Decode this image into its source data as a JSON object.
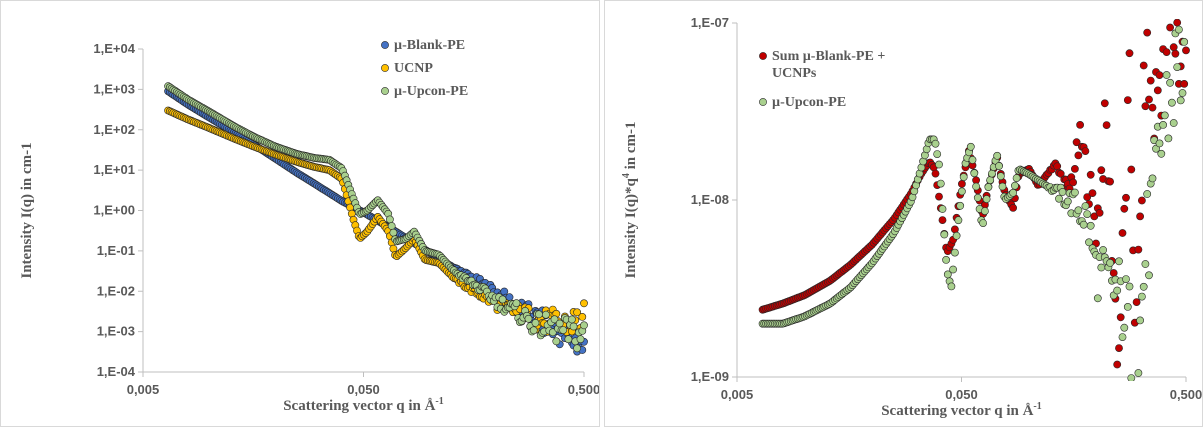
{
  "chart_data": [
    {
      "type": "scatter",
      "title": "",
      "xlabel": "Scattering vector q in Å",
      "xlabel_sup": "-1",
      "ylabel": "Intensity I(q) in cm-1",
      "ylabel_sup": "",
      "ylabel_tail": "",
      "x_scale": "log",
      "y_scale": "log",
      "xlim": [
        0.005,
        0.5
      ],
      "ylim": [
        0.0001,
        10000
      ],
      "x_ticks": [
        0.005,
        0.05,
        0.5
      ],
      "x_tick_labels": [
        "0,005",
        "0,050",
        "0,500"
      ],
      "y_ticks": [
        0.0001,
        0.001,
        0.01,
        0.1,
        1,
        10,
        100,
        1000,
        10000
      ],
      "y_tick_labels": [
        "1,E-04",
        "1,E-03",
        "1,E-02",
        "1,E-01",
        "1,E+00",
        "1,E+01",
        "1,E+02",
        "1,E+03",
        "1,E+04"
      ],
      "grid": false,
      "legend_position": "top-right",
      "series": [
        {
          "name": "µ-Blank-PE",
          "color": "#4472c4",
          "points": [
            [
              0.0065,
              900
            ],
            [
              0.008,
              420
            ],
            [
              0.01,
              200
            ],
            [
              0.013,
              85
            ],
            [
              0.016,
              42
            ],
            [
              0.02,
              19
            ],
            [
              0.025,
              8.5
            ],
            [
              0.03,
              4.6
            ],
            [
              0.035,
              2.7
            ],
            [
              0.04,
              1.7
            ],
            [
              0.05,
              0.9
            ],
            [
              0.06,
              0.5
            ],
            [
              0.07,
              0.3
            ],
            [
              0.08,
              0.19
            ],
            [
              0.1,
              0.09
            ],
            [
              0.12,
              0.048
            ],
            [
              0.15,
              0.024
            ],
            [
              0.18,
              0.013
            ],
            [
              0.2,
              0.009
            ],
            [
              0.25,
              0.004
            ],
            [
              0.3,
              0.0022
            ],
            [
              0.35,
              0.0013
            ],
            [
              0.4,
              0.0009
            ],
            [
              0.45,
              0.0006
            ],
            [
              0.5,
              0.0004
            ]
          ]
        },
        {
          "name": "UCNP",
          "color": "#ffc000",
          "points": [
            [
              0.0065,
              300
            ],
            [
              0.008,
              180
            ],
            [
              0.01,
              110
            ],
            [
              0.013,
              60
            ],
            [
              0.016,
              38
            ],
            [
              0.02,
              24
            ],
            [
              0.025,
              16
            ],
            [
              0.03,
              12
            ],
            [
              0.035,
              10
            ],
            [
              0.04,
              6
            ],
            [
              0.045,
              0.6
            ],
            [
              0.048,
              0.2
            ],
            [
              0.052,
              0.3
            ],
            [
              0.058,
              0.7
            ],
            [
              0.065,
              0.3
            ],
            [
              0.07,
              0.07
            ],
            [
              0.078,
              0.12
            ],
            [
              0.085,
              0.2
            ],
            [
              0.095,
              0.06
            ],
            [
              0.11,
              0.05
            ],
            [
              0.13,
              0.02
            ],
            [
              0.15,
              0.012
            ],
            [
              0.2,
              0.005
            ],
            [
              0.25,
              0.003
            ],
            [
              0.3,
              0.002
            ],
            [
              0.4,
              0.0015
            ],
            [
              0.5,
              0.002
            ]
          ]
        },
        {
          "name": "µ-Upcon-PE",
          "color": "#a9d08e",
          "points": [
            [
              0.0065,
              1200
            ],
            [
              0.008,
              560
            ],
            [
              0.01,
              280
            ],
            [
              0.013,
              120
            ],
            [
              0.016,
              66
            ],
            [
              0.02,
              38
            ],
            [
              0.025,
              25
            ],
            [
              0.03,
              20
            ],
            [
              0.035,
              18
            ],
            [
              0.04,
              11
            ],
            [
              0.045,
              2
            ],
            [
              0.048,
              0.8
            ],
            [
              0.052,
              1.0
            ],
            [
              0.058,
              1.8
            ],
            [
              0.065,
              0.8
            ],
            [
              0.07,
              0.17
            ],
            [
              0.078,
              0.2
            ],
            [
              0.085,
              0.3
            ],
            [
              0.095,
              0.1
            ],
            [
              0.11,
              0.08
            ],
            [
              0.13,
              0.03
            ],
            [
              0.15,
              0.018
            ],
            [
              0.2,
              0.006
            ],
            [
              0.25,
              0.003
            ],
            [
              0.3,
              0.0015
            ],
            [
              0.4,
              0.001
            ],
            [
              0.5,
              0.0008
            ]
          ]
        }
      ]
    },
    {
      "type": "scatter",
      "title": "",
      "xlabel": "Scattering vector q in Å",
      "xlabel_sup": "-1",
      "ylabel": "Intensity I(q)*q",
      "ylabel_sup": "4",
      "ylabel_tail": " in cm-1",
      "x_scale": "log",
      "y_scale": "log",
      "xlim": [
        0.005,
        0.5
      ],
      "ylim": [
        1e-09,
        1e-07
      ],
      "x_ticks": [
        0.005,
        0.05,
        0.5
      ],
      "x_tick_labels": [
        "0,005",
        "0,050",
        "0,500"
      ],
      "y_ticks": [
        1e-09,
        1e-08,
        1e-07
      ],
      "y_tick_labels": [
        "1,E-09",
        "1,E-08",
        "1,E-07"
      ],
      "grid": false,
      "legend_position": "top-left",
      "series": [
        {
          "name": "Sum µ-Blank-PE + UCNPs",
          "legend_lines": [
            "Sum µ-Blank-PE +",
            "UCNPs"
          ],
          "color": "#c00000",
          "points": [
            [
              0.0065,
              2.4e-09
            ],
            [
              0.008,
              2.6e-09
            ],
            [
              0.01,
              2.9e-09
            ],
            [
              0.013,
              3.5e-09
            ],
            [
              0.016,
              4.3e-09
            ],
            [
              0.02,
              5.6e-09
            ],
            [
              0.025,
              7.8e-09
            ],
            [
              0.03,
              1.1e-08
            ],
            [
              0.033,
              1.4e-08
            ],
            [
              0.036,
              1.65e-08
            ],
            [
              0.038,
              1.5e-08
            ],
            [
              0.041,
              8e-09
            ],
            [
              0.043,
              5e-09
            ],
            [
              0.046,
              6e-09
            ],
            [
              0.05,
              1.2e-08
            ],
            [
              0.054,
              1.9e-08
            ],
            [
              0.058,
              1.3e-08
            ],
            [
              0.062,
              8e-09
            ],
            [
              0.066,
              1.2e-08
            ],
            [
              0.072,
              1.75e-08
            ],
            [
              0.078,
              1.1e-08
            ],
            [
              0.085,
              9e-09
            ],
            [
              0.09,
              1.4e-08
            ],
            [
              0.1,
              1.5e-08
            ],
            [
              0.11,
              1.2e-08
            ],
            [
              0.13,
              1.6e-08
            ],
            [
              0.15,
              1.1e-08
            ],
            [
              0.17,
              2.2e-08
            ],
            [
              0.2,
              7e-09
            ],
            [
              0.22,
              2.8e-08
            ],
            [
              0.25,
              1.2e-09
            ],
            [
              0.28,
              4e-08
            ],
            [
              0.3,
              1.5e-09
            ],
            [
              0.33,
              6e-08
            ],
            [
              0.36,
              3e-08
            ],
            [
              0.4,
              8e-08
            ],
            [
              0.45,
              9e-08
            ],
            [
              0.5,
              5e-08
            ]
          ]
        },
        {
          "name": "µ-Upcon-PE",
          "legend_lines": [
            "µ-Upcon-PE"
          ],
          "color": "#a9d08e",
          "points": [
            [
              0.0065,
              2e-09
            ],
            [
              0.008,
              2e-09
            ],
            [
              0.01,
              2.2e-09
            ],
            [
              0.013,
              2.6e-09
            ],
            [
              0.016,
              3.2e-09
            ],
            [
              0.02,
              4.4e-09
            ],
            [
              0.025,
              6.5e-09
            ],
            [
              0.03,
              1e-08
            ],
            [
              0.033,
              1.5e-08
            ],
            [
              0.036,
              2.2e-08
            ],
            [
              0.038,
              2.2e-08
            ],
            [
              0.04,
              1.5e-08
            ],
            [
              0.043,
              4e-09
            ],
            [
              0.045,
              3.2e-09
            ],
            [
              0.048,
              7e-09
            ],
            [
              0.052,
              1.6e-08
            ],
            [
              0.055,
              2e-08
            ],
            [
              0.058,
              1.2e-08
            ],
            [
              0.062,
              7e-09
            ],
            [
              0.066,
              1.2e-08
            ],
            [
              0.072,
              1.8e-08
            ],
            [
              0.078,
              1e-08
            ],
            [
              0.085,
              1.1e-08
            ],
            [
              0.09,
              1.5e-08
            ],
            [
              0.1,
              1.4e-08
            ],
            [
              0.12,
              1.2e-08
            ],
            [
              0.15,
              1e-08
            ],
            [
              0.18,
              8e-09
            ],
            [
              0.2,
              4e-09
            ],
            [
              0.25,
              3e-09
            ],
            [
              0.28,
              2e-09
            ],
            [
              0.3,
              1e-09
            ],
            [
              0.33,
              5e-09
            ],
            [
              0.36,
              1e-08
            ],
            [
              0.4,
              3e-08
            ],
            [
              0.45,
              5e-08
            ],
            [
              0.5,
              7e-08
            ]
          ]
        }
      ]
    }
  ]
}
